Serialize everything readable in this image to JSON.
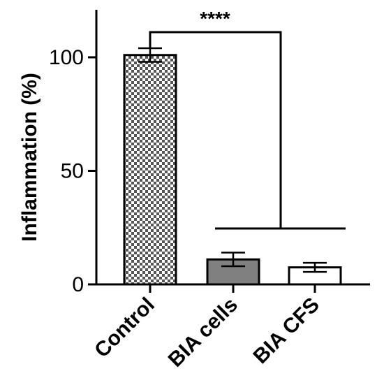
{
  "chart_data": {
    "type": "bar",
    "title": "",
    "xlabel": "",
    "ylabel": "Inflammation (%)",
    "ylim": [
      0,
      120
    ],
    "yticks": [
      0,
      50,
      100
    ],
    "yticks_text": [
      "0",
      "50",
      "100"
    ],
    "categories": [
      "Control",
      "BIA cells",
      "BIA CFS"
    ],
    "values": [
      101,
      11,
      7.5
    ],
    "errors": [
      3,
      3,
      2
    ],
    "bar_styles": [
      "checker-pattern",
      "solid-gray",
      "white"
    ],
    "bar_colors": [
      "#ffffff",
      "#808080",
      "#ffffff"
    ],
    "significance": {
      "label": "****",
      "between": "Control vs BIA cells / BIA CFS"
    },
    "grid": false,
    "legend": "none"
  }
}
